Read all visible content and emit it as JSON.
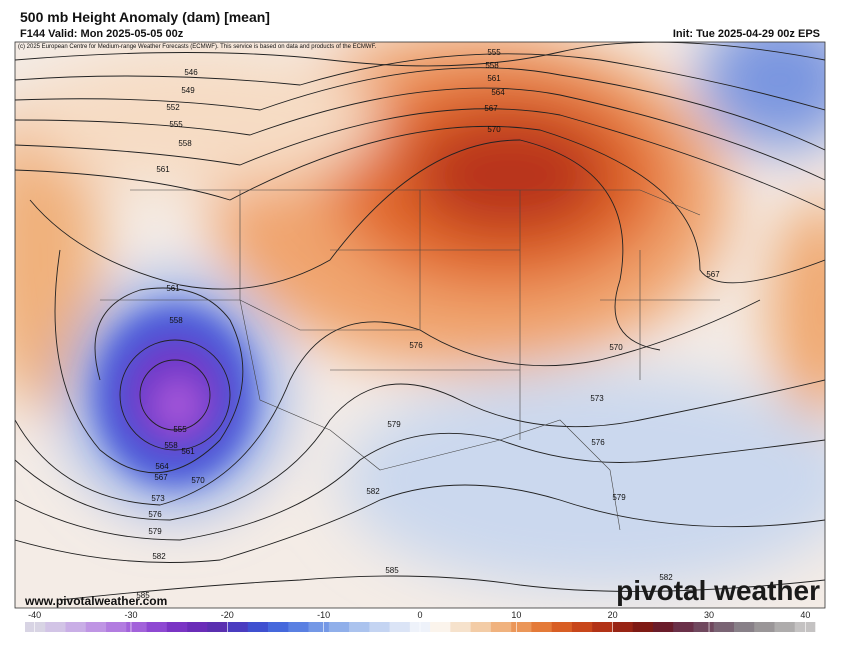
{
  "header": {
    "title": "500 mb Height Anomaly (dam) [mean]",
    "valid": "F144 Valid: Mon 2025-05-05 00z",
    "init": "Init: Tue 2025-04-29 00z EPS",
    "copyright": "(c) 2025 European Centre for Medium-range Weather Forecasts (ECMWF). This service is based on data and products of the ECMWF."
  },
  "contour_labels": [
    "555",
    "558",
    "561",
    "564",
    "567",
    "570",
    "546",
    "549",
    "552",
    "555",
    "558",
    "561",
    "561",
    "558",
    "576",
    "570",
    "573",
    "576",
    "579",
    "555",
    "558",
    "561",
    "564",
    "567",
    "570",
    "573",
    "576",
    "579",
    "582",
    "582",
    "585",
    "579",
    "582",
    "585",
    "567"
  ],
  "footer": {
    "website": "www.pivotalweather.com",
    "brand": "pivotal weather"
  },
  "colorbar": {
    "lim": [
      -41,
      41
    ],
    "ticks": [
      -40,
      -30,
      -20,
      -10,
      0,
      10,
      20,
      30,
      40
    ],
    "colors": [
      "#d8d4e4",
      "#d2c4e6",
      "#c9aee6",
      "#bf95e4",
      "#b27ce0",
      "#a262da",
      "#8e48d2",
      "#7a34c4",
      "#6a2cb8",
      "#5a2fb0",
      "#4a3cc0",
      "#3f50d0",
      "#4568dc",
      "#5a80e2",
      "#7498e6",
      "#90afea",
      "#abc3ee",
      "#c4d4f2",
      "#dbe4f6",
      "#eef2fa",
      "#fbf4ec",
      "#f6e2cc",
      "#f3cca6",
      "#f0b27e",
      "#eb9658",
      "#e47a38",
      "#d85e24",
      "#c8461a",
      "#b23216",
      "#982414",
      "#7e1a14",
      "#6a1c2a",
      "#6a3048",
      "#70485e",
      "#7a6474",
      "#888088",
      "#9a9698",
      "#aeacac",
      "#c4c2c2"
    ]
  }
}
